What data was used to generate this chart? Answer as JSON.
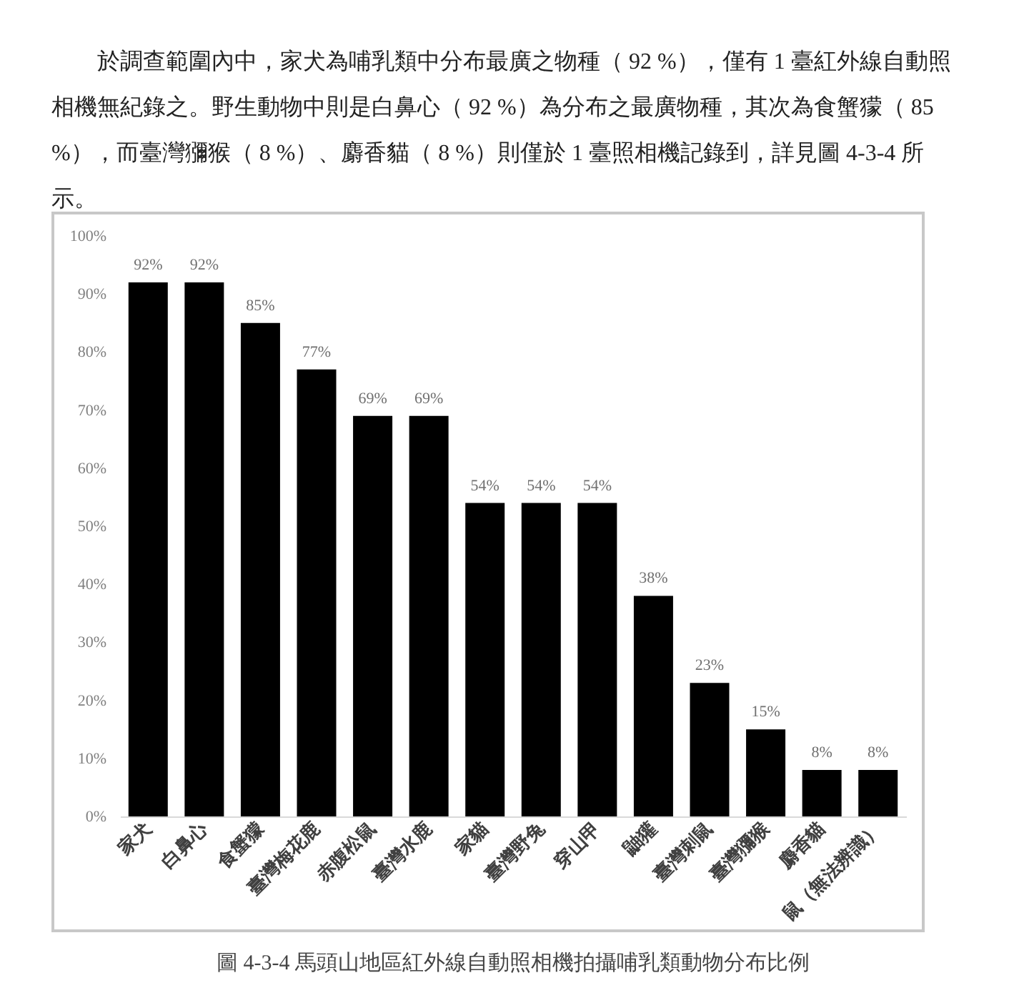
{
  "chart_data": {
    "type": "bar",
    "title": "圖 4-3-4 馬頭山地區紅外線自動照相機拍攝哺乳類動物分布比例",
    "annotations": [
      "於調查範圍內中，家犬為哺乳類中分布最廣之物種（ 92 %），僅有 1 臺紅外線自動照相機無紀錄之。野生動物中則是白鼻心（ 92 %）為分布之最廣物種，其次為食蟹獴（ 85 %），而臺灣獼猴（ 8 %）、麝香貓（ 8 %）則僅於 1 臺照相機記錄到，詳見圖 4-3-4 所示。"
    ],
    "categories": [
      "家犬",
      "白鼻心",
      "食蟹獴",
      "臺灣梅花鹿",
      "赤腹松鼠",
      "臺灣水鹿",
      "家貓",
      "臺灣野兔",
      "穿山甲",
      "鼬獾",
      "臺灣刺鼠",
      "臺灣獼猴",
      "麝香貓",
      "鼠（無法辨識）"
    ],
    "values": [
      92,
      92,
      85,
      77,
      69,
      69,
      54,
      54,
      54,
      38,
      23,
      15,
      8,
      8
    ],
    "value_labels": [
      "92%",
      "92%",
      "85%",
      "77%",
      "69%",
      "69%",
      "54%",
      "54%",
      "54%",
      "38%",
      "23%",
      "15%",
      "8%",
      "8%"
    ],
    "color": "#000000",
    "ylim": [
      0,
      100
    ],
    "yticks": [
      {
        "value": 0,
        "label": "0%"
      },
      {
        "value": 10,
        "label": "10%"
      },
      {
        "value": 20,
        "label": "20%"
      },
      {
        "value": 30,
        "label": "30%"
      },
      {
        "value": 40,
        "label": "40%"
      },
      {
        "value": 50,
        "label": "50%"
      },
      {
        "value": 60,
        "label": "60%"
      },
      {
        "value": 70,
        "label": "70%"
      },
      {
        "value": 80,
        "label": "80%"
      },
      {
        "value": 90,
        "label": "90%"
      },
      {
        "value": 100,
        "label": "100%"
      }
    ],
    "grid": false
  }
}
